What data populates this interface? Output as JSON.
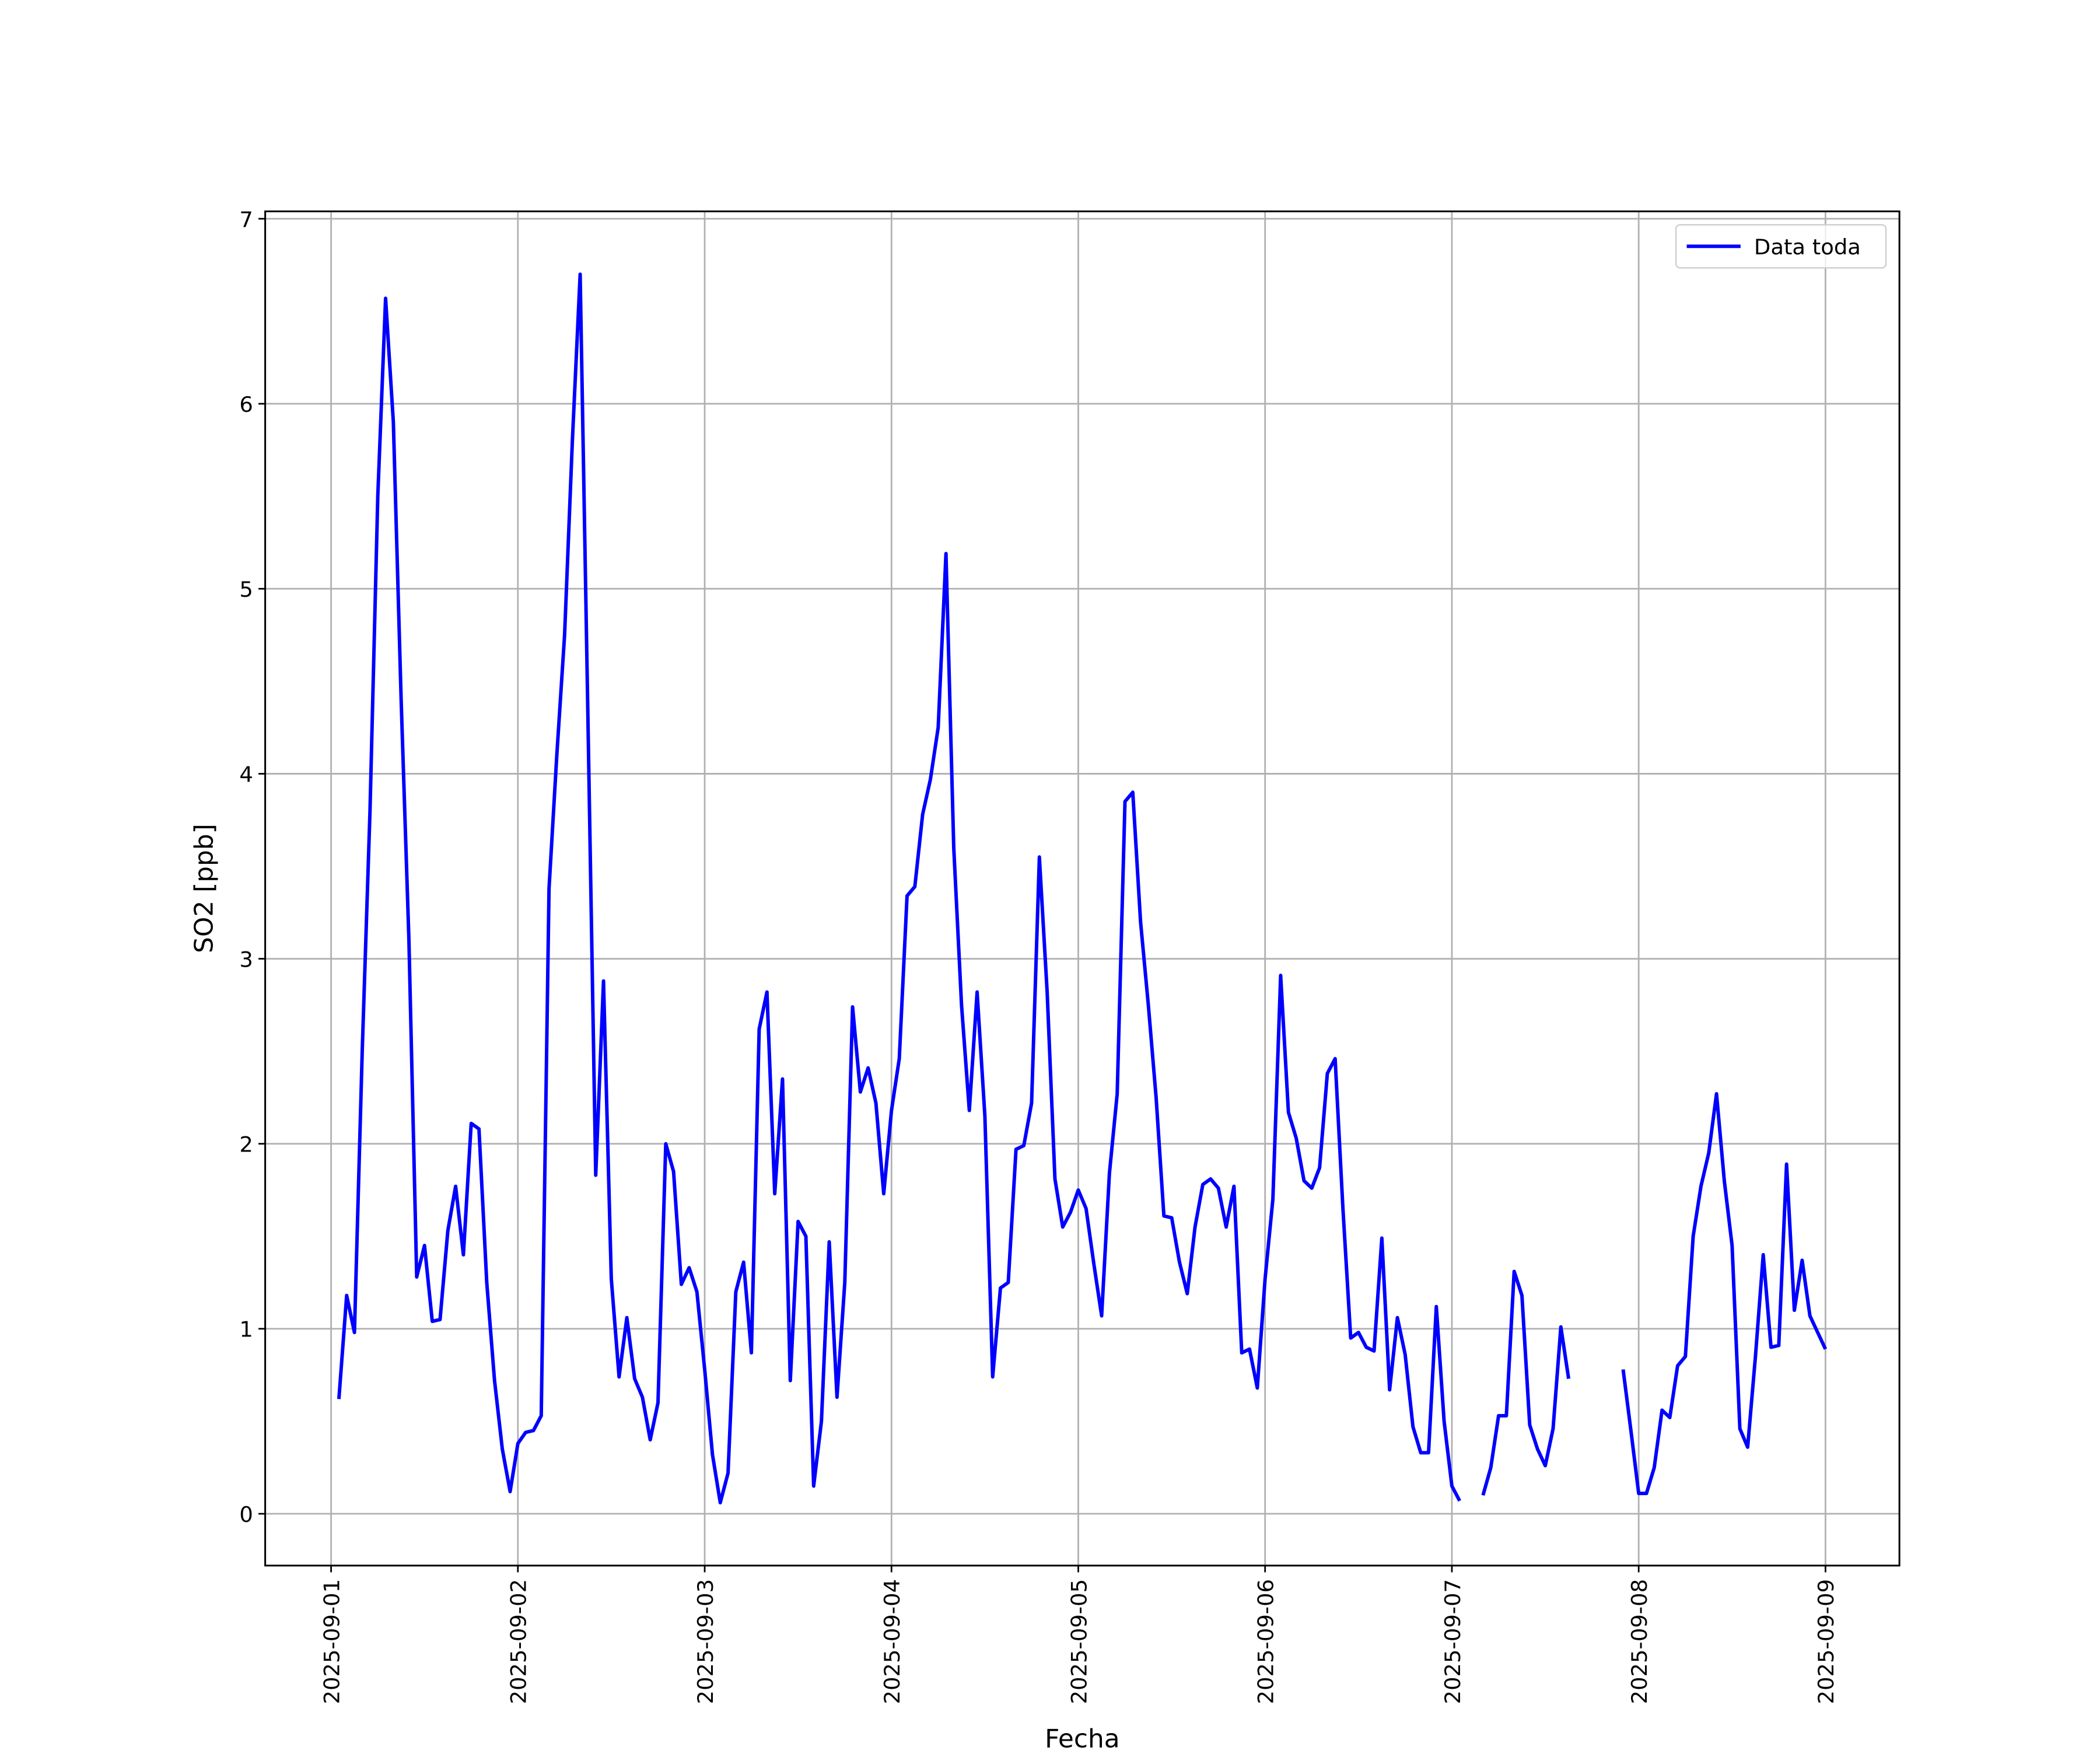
{
  "chart_data": {
    "type": "line",
    "xlabel": "Fecha",
    "ylabel": "SO2 [ppb]",
    "x": [
      "2025-09-01T01:00",
      "2025-09-01T02:00",
      "2025-09-01T03:00",
      "2025-09-01T04:00",
      "2025-09-01T05:00",
      "2025-09-01T06:00",
      "2025-09-01T07:00",
      "2025-09-01T08:00",
      "2025-09-01T09:00",
      "2025-09-01T10:00",
      "2025-09-01T11:00",
      "2025-09-01T12:00",
      "2025-09-01T13:00",
      "2025-09-01T14:00",
      "2025-09-01T15:00",
      "2025-09-01T16:00",
      "2025-09-01T17:00",
      "2025-09-01T18:00",
      "2025-09-01T19:00",
      "2025-09-01T20:00",
      "2025-09-01T21:00",
      "2025-09-01T22:00",
      "2025-09-01T23:00",
      "2025-09-02T00:00",
      "2025-09-02T01:00",
      "2025-09-02T02:00",
      "2025-09-02T03:00",
      "2025-09-02T04:00",
      "2025-09-02T05:00",
      "2025-09-02T06:00",
      "2025-09-02T07:00",
      "2025-09-02T08:00",
      "2025-09-02T09:00",
      "2025-09-02T10:00",
      "2025-09-02T11:00",
      "2025-09-02T12:00",
      "2025-09-02T13:00",
      "2025-09-02T14:00",
      "2025-09-02T15:00",
      "2025-09-02T16:00",
      "2025-09-02T17:00",
      "2025-09-02T18:00",
      "2025-09-02T19:00",
      "2025-09-02T20:00",
      "2025-09-02T21:00",
      "2025-09-02T22:00",
      "2025-09-02T23:00",
      "2025-09-03T00:00",
      "2025-09-03T01:00",
      "2025-09-03T02:00",
      "2025-09-03T03:00",
      "2025-09-03T04:00",
      "2025-09-03T05:00",
      "2025-09-03T06:00",
      "2025-09-03T07:00",
      "2025-09-03T08:00",
      "2025-09-03T09:00",
      "2025-09-03T10:00",
      "2025-09-03T11:00",
      "2025-09-03T12:00",
      "2025-09-03T13:00",
      "2025-09-03T14:00",
      "2025-09-03T15:00",
      "2025-09-03T16:00",
      "2025-09-03T17:00",
      "2025-09-03T18:00",
      "2025-09-03T19:00",
      "2025-09-03T20:00",
      "2025-09-03T21:00",
      "2025-09-03T22:00",
      "2025-09-03T23:00",
      "2025-09-04T00:00",
      "2025-09-04T01:00",
      "2025-09-04T02:00",
      "2025-09-04T03:00",
      "2025-09-04T04:00",
      "2025-09-04T05:00",
      "2025-09-04T06:00",
      "2025-09-04T07:00",
      "2025-09-04T08:00",
      "2025-09-04T09:00",
      "2025-09-04T10:00",
      "2025-09-04T11:00",
      "2025-09-04T12:00",
      "2025-09-04T13:00",
      "2025-09-04T14:00",
      "2025-09-04T15:00",
      "2025-09-04T16:00",
      "2025-09-04T17:00",
      "2025-09-04T18:00",
      "2025-09-04T19:00",
      "2025-09-04T20:00",
      "2025-09-04T21:00",
      "2025-09-04T22:00",
      "2025-09-04T23:00",
      "2025-09-05T00:00",
      "2025-09-05T01:00",
      "2025-09-05T02:00",
      "2025-09-05T03:00",
      "2025-09-05T04:00",
      "2025-09-05T05:00",
      "2025-09-05T06:00",
      "2025-09-05T07:00",
      "2025-09-05T08:00",
      "2025-09-05T09:00",
      "2025-09-05T10:00",
      "2025-09-05T11:00",
      "2025-09-05T12:00",
      "2025-09-05T13:00",
      "2025-09-05T14:00",
      "2025-09-05T15:00",
      "2025-09-05T16:00",
      "2025-09-05T17:00",
      "2025-09-05T18:00",
      "2025-09-05T19:00",
      "2025-09-05T20:00",
      "2025-09-05T21:00",
      "2025-09-05T22:00",
      "2025-09-05T23:00",
      "2025-09-06T00:00",
      "2025-09-06T01:00",
      "2025-09-06T02:00",
      "2025-09-06T03:00",
      "2025-09-06T04:00",
      "2025-09-06T05:00",
      "2025-09-06T06:00",
      "2025-09-06T07:00",
      "2025-09-06T08:00",
      "2025-09-06T09:00",
      "2025-09-06T10:00",
      "2025-09-06T11:00",
      "2025-09-06T12:00",
      "2025-09-06T13:00",
      "2025-09-06T14:00",
      "2025-09-06T15:00",
      "2025-09-06T16:00",
      "2025-09-06T17:00",
      "2025-09-06T18:00",
      "2025-09-06T19:00",
      "2025-09-06T20:00",
      "2025-09-06T21:00",
      "2025-09-06T22:00",
      "2025-09-06T23:00",
      "2025-09-07T00:00",
      "2025-09-07T01:00",
      "2025-09-07T02:00",
      "2025-09-07T03:00",
      "2025-09-07T04:00",
      "2025-09-07T05:00",
      "2025-09-07T06:00",
      "2025-09-07T07:00",
      "2025-09-07T08:00",
      "2025-09-07T09:00",
      "2025-09-07T10:00",
      "2025-09-07T11:00",
      "2025-09-07T12:00",
      "2025-09-07T13:00",
      "2025-09-07T14:00",
      "2025-09-07T15:00",
      "2025-09-07T16:00",
      "2025-09-07T17:00",
      "2025-09-07T18:00",
      "2025-09-07T19:00",
      "2025-09-07T20:00",
      "2025-09-07T21:00",
      "2025-09-07T22:00",
      "2025-09-07T23:00",
      "2025-09-08T00:00",
      "2025-09-08T01:00",
      "2025-09-08T02:00",
      "2025-09-08T03:00",
      "2025-09-08T04:00",
      "2025-09-08T05:00",
      "2025-09-08T06:00",
      "2025-09-08T07:00",
      "2025-09-08T08:00",
      "2025-09-08T09:00",
      "2025-09-08T10:00",
      "2025-09-08T11:00",
      "2025-09-08T12:00",
      "2025-09-08T13:00",
      "2025-09-08T14:00",
      "2025-09-08T15:00",
      "2025-09-08T16:00",
      "2025-09-08T17:00",
      "2025-09-08T18:00",
      "2025-09-08T19:00",
      "2025-09-08T20:00",
      "2025-09-08T21:00",
      "2025-09-08T22:00",
      "2025-09-08T23:00",
      "2025-09-09T00:00"
    ],
    "series": [
      {
        "name": "Data toda",
        "color": "#0000ff",
        "values": [
          0.62,
          1.18,
          0.98,
          2.5,
          3.8,
          5.5,
          6.57,
          5.9,
          4.4,
          3.1,
          1.28,
          1.45,
          1.04,
          1.05,
          1.53,
          1.77,
          1.4,
          2.11,
          2.08,
          1.25,
          0.72,
          0.35,
          0.12,
          0.38,
          0.44,
          0.45,
          0.53,
          3.38,
          4.1,
          4.75,
          5.8,
          6.7,
          4.3,
          1.83,
          2.88,
          1.27,
          0.74,
          1.06,
          0.73,
          0.63,
          0.4,
          0.6,
          2.0,
          1.85,
          1.24,
          1.33,
          1.2,
          0.78,
          0.32,
          0.06,
          0.22,
          1.2,
          1.36,
          0.87,
          2.62,
          2.82,
          1.73,
          2.35,
          0.72,
          1.58,
          1.5,
          0.15,
          0.5,
          1.47,
          0.63,
          1.25,
          2.74,
          2.28,
          2.41,
          2.22,
          1.73,
          2.18,
          2.46,
          3.34,
          3.39,
          3.78,
          3.97,
          4.25,
          5.19,
          3.6,
          2.75,
          2.18,
          2.82,
          2.15,
          0.74,
          1.22,
          1.25,
          1.97,
          1.99,
          2.22,
          3.55,
          2.82,
          1.81,
          1.55,
          1.63,
          1.75,
          1.65,
          1.35,
          1.07,
          1.84,
          2.27,
          3.85,
          3.9,
          3.2,
          2.75,
          2.25,
          1.61,
          1.6,
          1.36,
          1.19,
          1.55,
          1.78,
          1.81,
          1.76,
          1.55,
          1.77,
          0.87,
          0.89,
          0.68,
          1.27,
          1.7,
          2.91,
          2.17,
          2.03,
          1.8,
          1.76,
          1.87,
          2.38,
          2.46,
          1.65,
          0.95,
          0.98,
          0.9,
          0.88,
          1.49,
          0.67,
          1.06,
          0.86,
          0.47,
          0.33,
          0.33,
          1.12,
          0.5,
          0.15,
          0.07,
          null,
          null,
          0.1,
          0.25,
          0.53,
          0.53,
          1.31,
          1.18,
          0.48,
          0.35,
          0.26,
          0.46,
          1.01,
          0.73,
          null,
          null,
          null,
          null,
          null,
          null,
          0.78,
          0.45,
          0.11,
          0.11,
          0.25,
          0.56,
          0.52,
          0.8,
          0.85,
          1.5,
          1.77,
          1.95,
          2.27,
          1.8,
          1.45,
          0.46,
          0.36,
          0.85,
          1.4,
          0.9,
          0.91,
          1.89,
          1.1,
          1.37,
          1.07,
          0.98,
          0.89
        ]
      }
    ],
    "xlim": [
      "2025-08-31T15:32",
      "2025-09-09T09:30"
    ],
    "xticks": [
      "2025-09-01",
      "2025-09-02",
      "2025-09-03",
      "2025-09-04",
      "2025-09-05",
      "2025-09-06",
      "2025-09-07",
      "2025-09-08",
      "2025-09-09"
    ],
    "ylim": [
      -0.28,
      7.04
    ],
    "yticks": [
      0,
      1,
      2,
      3,
      4,
      5,
      6,
      7
    ],
    "grid": true,
    "legend": "upper right"
  }
}
